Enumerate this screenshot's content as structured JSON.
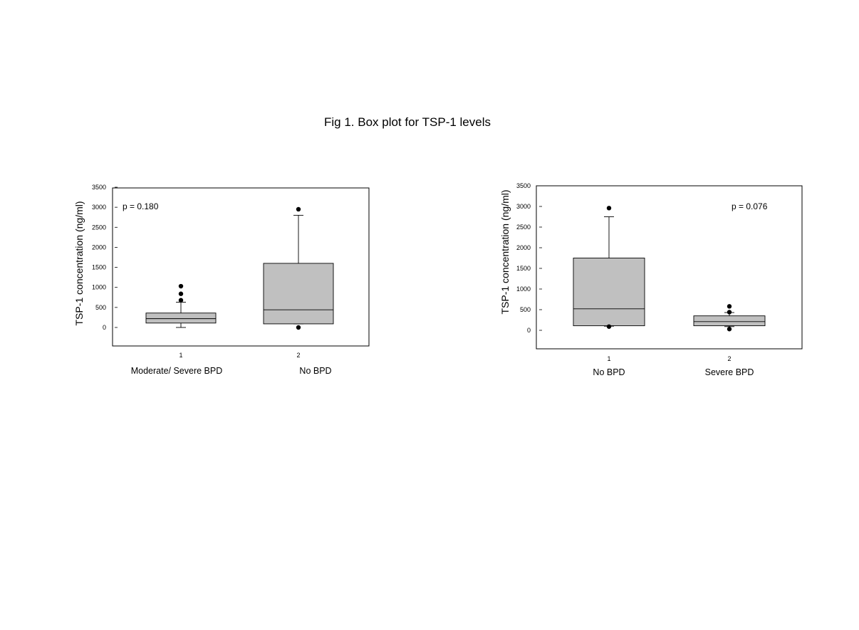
{
  "figure_title": "Fig 1. Box plot for TSP-1 levels",
  "chart_data": [
    {
      "type": "box",
      "title": "",
      "ylabel": "TSP-1 concentration (ng/ml)",
      "ylim": [
        0,
        3500
      ],
      "yticks": [
        0,
        500,
        1000,
        1500,
        2000,
        2500,
        3000,
        3500
      ],
      "annotation": "p = 0.180",
      "annotation_position": "top-left",
      "x_ticks": [
        "1",
        "2"
      ],
      "groups": [
        {
          "label": "Moderate/ Severe BPD",
          "whisker_low": 0,
          "q1": 110,
          "median": 220,
          "q3": 360,
          "whisker_high": 630,
          "outliers": [
            680,
            840,
            1030
          ]
        },
        {
          "label": "No BPD",
          "whisker_low": 90,
          "q1": 90,
          "median": 440,
          "q3": 1600,
          "whisker_high": 2800,
          "outliers": [
            0,
            2950
          ]
        }
      ]
    },
    {
      "type": "box",
      "title": "",
      "ylabel": "TSP-1 concentration (ng/ml)",
      "ylim": [
        0,
        3500
      ],
      "yticks": [
        0,
        500,
        1000,
        1500,
        2000,
        2500,
        3000,
        3500
      ],
      "annotation": "p = 0.076",
      "annotation_position": "top-right",
      "x_ticks": [
        "1",
        "2"
      ],
      "groups": [
        {
          "label": "No BPD",
          "whisker_low": 100,
          "q1": 110,
          "median": 520,
          "q3": 1750,
          "whisker_high": 2750,
          "outliers": [
            90,
            2960
          ]
        },
        {
          "label": "Severe BPD",
          "whisker_low": 90,
          "q1": 110,
          "median": 210,
          "q3": 350,
          "whisker_high": 430,
          "outliers": [
            30,
            440,
            580
          ]
        }
      ]
    }
  ],
  "colors": {
    "box_fill": "#c0c0c0",
    "line": "#000000",
    "background": "#ffffff"
  }
}
